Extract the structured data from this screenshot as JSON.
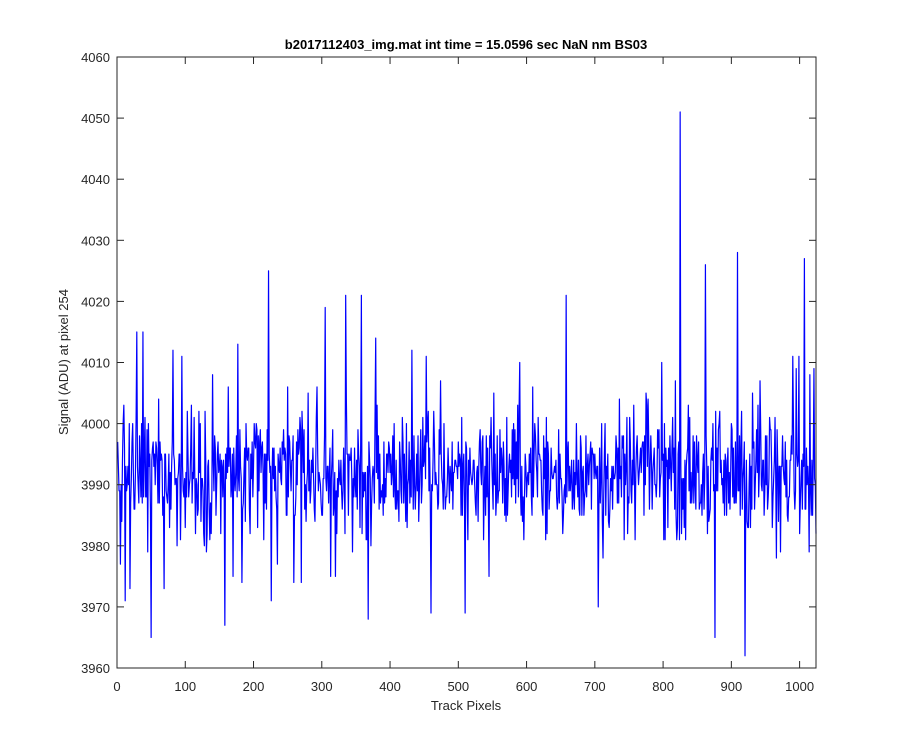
{
  "chart_data": {
    "type": "line",
    "title": "b2017112403_img.mat int time = 15.0596 sec  NaN nm BS03",
    "xlabel": "Track Pixels",
    "ylabel": "Signal (ADU) at pixel 254",
    "xlim": [
      0,
      1024
    ],
    "ylim": [
      3960,
      4060
    ],
    "xticks": [
      0,
      100,
      200,
      300,
      400,
      500,
      600,
      700,
      800,
      900,
      1000
    ],
    "yticks": [
      3960,
      3970,
      3980,
      3990,
      4000,
      4010,
      4020,
      4030,
      4040,
      4050,
      4060
    ],
    "grid": false,
    "series": [
      {
        "color": "#0000ff",
        "x_start": 1,
        "x_step": 1,
        "noise_center": 3992,
        "noise_amplitude": 9,
        "n_points": 1024,
        "peaks": [
          [
            3,
            3989
          ],
          [
            5,
            3977
          ],
          [
            8,
            3994
          ],
          [
            12,
            3971
          ],
          [
            16,
            3993
          ],
          [
            19,
            3973
          ],
          [
            25,
            3986
          ],
          [
            29,
            4015
          ],
          [
            31,
            3990
          ],
          [
            38,
            4015
          ],
          [
            45,
            3979
          ],
          [
            50,
            3965
          ],
          [
            55,
            3995
          ],
          [
            61,
            4004
          ],
          [
            69,
            3973
          ],
          [
            76,
            3995
          ],
          [
            82,
            4012
          ],
          [
            88,
            3980
          ],
          [
            95,
            4011
          ],
          [
            100,
            3983
          ],
          [
            109,
            4003
          ],
          [
            115,
            3982
          ],
          [
            120,
            4002
          ],
          [
            131,
            3979
          ],
          [
            140,
            4008
          ],
          [
            151,
            3995
          ],
          [
            158,
            3967
          ],
          [
            163,
            4006
          ],
          [
            170,
            3975
          ],
          [
            177,
            4013
          ],
          [
            183,
            3974
          ],
          [
            188,
            3984
          ],
          [
            200,
            3993
          ],
          [
            206,
            3983
          ],
          [
            215,
            3981
          ],
          [
            222,
            4025
          ],
          [
            226,
            3971
          ],
          [
            235,
            3977
          ],
          [
            245,
            3994
          ],
          [
            250,
            4006
          ],
          [
            259,
            3974
          ],
          [
            263,
            3997
          ],
          [
            270,
            3974
          ],
          [
            280,
            4005
          ],
          [
            293,
            4006
          ],
          [
            300,
            3985
          ],
          [
            305,
            4019
          ],
          [
            313,
            3975
          ],
          [
            320,
            3975
          ],
          [
            323,
            3991
          ],
          [
            335,
            4021
          ],
          [
            339,
            3985
          ],
          [
            345,
            3979
          ],
          [
            352,
            3986
          ],
          [
            358,
            4021
          ],
          [
            362,
            3992
          ],
          [
            365,
            3981
          ],
          [
            368,
            3968
          ],
          [
            372,
            3980
          ],
          [
            379,
            4014
          ],
          [
            384,
            3986
          ],
          [
            390,
            3985
          ],
          [
            400,
            3992
          ],
          [
            412,
            3989
          ],
          [
            420,
            3987
          ],
          [
            432,
            4012
          ],
          [
            440,
            3989
          ],
          [
            447,
            3990
          ],
          [
            453,
            4011
          ],
          [
            460,
            3969
          ],
          [
            467,
            3992
          ],
          [
            474,
            4007
          ],
          [
            483,
            3988
          ],
          [
            497,
            3993
          ],
          [
            503,
            3994
          ],
          [
            510,
            3969
          ],
          [
            520,
            3990
          ],
          [
            530,
            3993
          ],
          [
            545,
            3975
          ],
          [
            552,
            4005
          ],
          [
            560,
            3989
          ],
          [
            570,
            3984
          ],
          [
            580,
            3991
          ],
          [
            590,
            4010
          ],
          [
            603,
            3990
          ],
          [
            609,
            4006
          ],
          [
            617,
            4001
          ],
          [
            623,
            3986
          ],
          [
            630,
            3982
          ],
          [
            638,
            3991
          ],
          [
            646,
            3988
          ],
          [
            653,
            3982
          ],
          [
            658,
            4021
          ],
          [
            664,
            3989
          ],
          [
            671,
            3992
          ],
          [
            683,
            3993
          ],
          [
            695,
            3986
          ],
          [
            705,
            3970
          ],
          [
            712,
            3978
          ],
          [
            718,
            3991
          ],
          [
            727,
            3993
          ],
          [
            735,
            3987
          ],
          [
            743,
            3981
          ],
          [
            750,
            3987
          ],
          [
            756,
            3990
          ],
          [
            761,
            3996
          ],
          [
            770,
            3997
          ],
          [
            778,
            4004
          ],
          [
            783,
            3994
          ],
          [
            793,
            3996
          ],
          [
            798,
            4010
          ],
          [
            802,
            4000
          ],
          [
            808,
            3996
          ],
          [
            813,
            3996
          ],
          [
            818,
            4007
          ],
          [
            825,
            4051
          ],
          [
            829,
            3986
          ],
          [
            834,
            3993
          ],
          [
            843,
            3990
          ],
          [
            850,
            3994
          ],
          [
            855,
            3987
          ],
          [
            862,
            4026
          ],
          [
            868,
            3985
          ],
          [
            876,
            3965
          ],
          [
            882,
            4000
          ],
          [
            887,
            3991
          ],
          [
            890,
            3985
          ],
          [
            898,
            3986
          ],
          [
            905,
            3987
          ],
          [
            909,
            4028
          ],
          [
            915,
            4002
          ],
          [
            920,
            3962
          ],
          [
            925,
            3983
          ],
          [
            931,
            4005
          ],
          [
            937,
            3999
          ],
          [
            942,
            4007
          ],
          [
            949,
            3989
          ],
          [
            955,
            3991
          ],
          [
            960,
            3983
          ],
          [
            966,
            3978
          ],
          [
            972,
            3979
          ],
          [
            980,
            3988
          ],
          [
            985,
            3988
          ],
          [
            990,
            4011
          ],
          [
            995,
            4009
          ],
          [
            999,
            4011
          ],
          [
            1004,
            3986
          ],
          [
            1007,
            4027
          ],
          [
            1011,
            3990
          ],
          [
            1015,
            4008
          ],
          [
            1018,
            3994
          ],
          [
            1021,
            4009
          ],
          [
            1024,
            3982
          ]
        ]
      }
    ]
  }
}
